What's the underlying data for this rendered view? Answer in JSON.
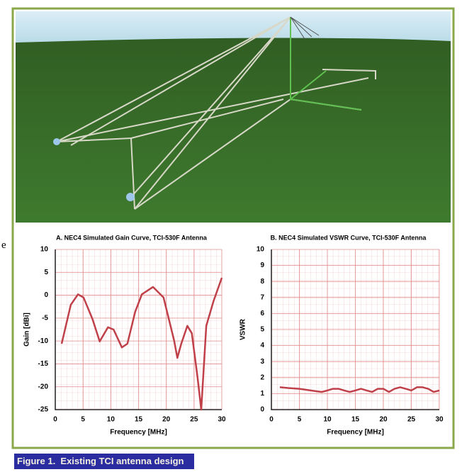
{
  "fragment": "e",
  "caption": "Figure 1.  Existing TCI antenna design",
  "chart_data": [
    {
      "type": "line",
      "title": "A. NEC4 Simulated Gain Curve, TCI-530F Antenna",
      "x_label": "Frequency [MHz]",
      "y_label": "Gain [dBi]",
      "color": "#c0404a",
      "x": [
        1.15,
        2.8,
        4.1,
        5.1,
        6.7,
        8,
        9.5,
        10.5,
        12,
        13,
        14.4,
        15.6,
        17.6,
        19.5,
        21.4,
        22,
        22.7,
        23.8,
        24.6,
        25.6,
        26.3,
        27.2,
        28.5,
        30
      ],
      "values": [
        -10.6,
        -2.1,
        0.2,
        -0.5,
        -5.2,
        -10.1,
        -7,
        -7.5,
        -11.4,
        -10.6,
        -3.6,
        0.2,
        1.8,
        -0.5,
        -9.8,
        -13.7,
        -10.6,
        -6.7,
        -8.3,
        -17.6,
        -25,
        -6.7,
        -1.3,
        3.8
      ],
      "xlim": [
        0,
        30
      ],
      "xticks": [
        0,
        5,
        10,
        15,
        20,
        25,
        30
      ],
      "ylim": [
        -25,
        10
      ],
      "yticks": [
        -25,
        -20,
        -15,
        -10,
        -5,
        0,
        5,
        10
      ],
      "grid": true
    },
    {
      "type": "line",
      "title": "B. NEC4 Simulated VSWR Curve, TCI-530F Antenna",
      "x_label": "Frequency [MHz]",
      "y_label": "VSWR",
      "color": "#c0404a",
      "x": [
        1.5,
        3,
        5,
        7,
        9,
        10,
        11,
        12,
        13,
        14,
        15,
        16,
        17,
        18,
        19,
        20,
        21,
        22,
        23,
        24,
        25,
        26,
        27,
        28,
        29,
        30
      ],
      "values": [
        1.4,
        1.35,
        1.3,
        1.2,
        1.1,
        1.2,
        1.3,
        1.3,
        1.2,
        1.1,
        1.2,
        1.3,
        1.2,
        1.1,
        1.3,
        1.3,
        1.1,
        1.3,
        1.4,
        1.3,
        1.2,
        1.4,
        1.4,
        1.3,
        1.1,
        1.2
      ],
      "xlim": [
        0,
        30
      ],
      "xticks": [
        0,
        5,
        10,
        15,
        20,
        25,
        30
      ],
      "ylim": [
        0,
        10
      ],
      "yticks": [
        0,
        1,
        2,
        3,
        4,
        5,
        6,
        7,
        8,
        9,
        10
      ],
      "grid": true
    }
  ]
}
